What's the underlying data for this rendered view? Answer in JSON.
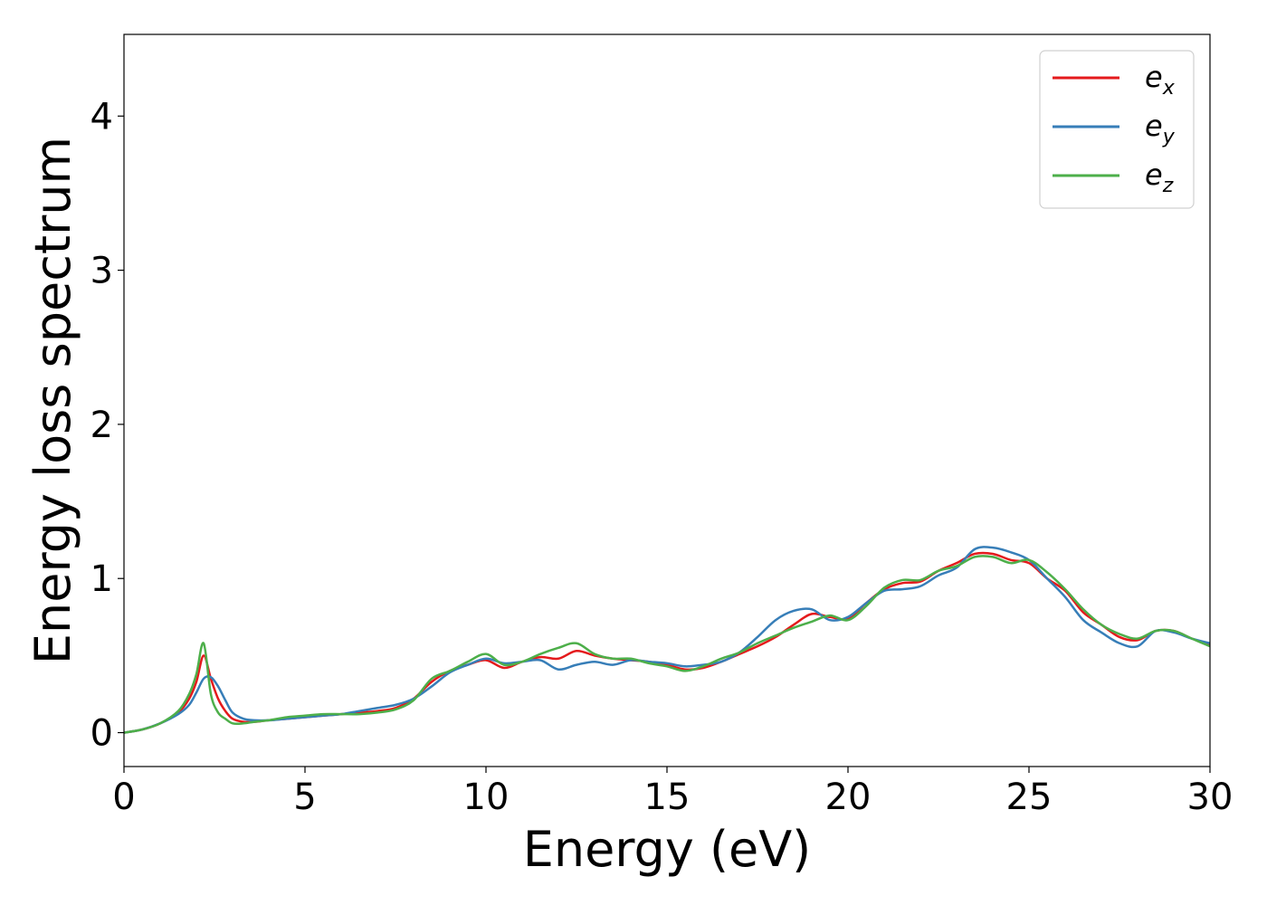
{
  "chart_data": {
    "type": "line",
    "xlabel": "Energy (eV)",
    "ylabel": "Energy loss spectrum",
    "xlim": [
      0,
      30
    ],
    "ylim": [
      -0.22,
      4.53
    ],
    "xticks": [
      0,
      5,
      10,
      15,
      20,
      25,
      30
    ],
    "yticks": [
      0,
      1,
      2,
      3,
      4
    ],
    "grid": false,
    "legend_position": "top-right",
    "x": [
      0,
      0.5,
      1,
      1.5,
      1.8,
      2.0,
      2.2,
      2.4,
      2.6,
      2.8,
      3.0,
      3.3,
      3.6,
      4,
      4.5,
      5,
      5.5,
      6,
      6.5,
      7,
      7.5,
      8,
      8.5,
      9,
      9.5,
      10,
      10.5,
      11,
      11.5,
      12,
      12.5,
      13,
      13.5,
      14,
      14.5,
      15,
      15.5,
      16,
      16.5,
      17,
      17.5,
      18,
      18.5,
      19,
      19.5,
      20,
      20.5,
      21,
      21.5,
      22,
      22.5,
      23,
      23.5,
      24,
      24.5,
      25,
      25.5,
      26,
      26.5,
      27,
      27.5,
      28,
      28.5,
      29,
      29.5,
      30
    ],
    "series": [
      {
        "name_base": "e",
        "name_sub": "x",
        "color": "#e41a1c",
        "values": [
          0,
          0.02,
          0.06,
          0.13,
          0.22,
          0.33,
          0.5,
          0.35,
          0.22,
          0.14,
          0.09,
          0.07,
          0.07,
          0.08,
          0.09,
          0.1,
          0.11,
          0.12,
          0.13,
          0.14,
          0.16,
          0.22,
          0.33,
          0.4,
          0.44,
          0.47,
          0.42,
          0.46,
          0.49,
          0.48,
          0.53,
          0.5,
          0.48,
          0.47,
          0.46,
          0.44,
          0.41,
          0.42,
          0.46,
          0.51,
          0.56,
          0.62,
          0.7,
          0.77,
          0.75,
          0.74,
          0.84,
          0.93,
          0.97,
          0.98,
          1.05,
          1.1,
          1.16,
          1.16,
          1.12,
          1.1,
          1.0,
          0.92,
          0.78,
          0.7,
          0.62,
          0.6,
          0.66,
          0.66,
          0.61,
          0.57
        ]
      },
      {
        "name_base": "e",
        "name_sub": "y",
        "color": "#377eb8",
        "values": [
          0,
          0.02,
          0.06,
          0.12,
          0.18,
          0.26,
          0.35,
          0.36,
          0.3,
          0.21,
          0.13,
          0.09,
          0.08,
          0.08,
          0.09,
          0.1,
          0.11,
          0.12,
          0.14,
          0.16,
          0.18,
          0.22,
          0.3,
          0.39,
          0.44,
          0.48,
          0.45,
          0.46,
          0.47,
          0.41,
          0.44,
          0.46,
          0.44,
          0.47,
          0.46,
          0.45,
          0.43,
          0.44,
          0.46,
          0.52,
          0.62,
          0.73,
          0.79,
          0.8,
          0.73,
          0.75,
          0.84,
          0.92,
          0.93,
          0.95,
          1.02,
          1.07,
          1.19,
          1.2,
          1.17,
          1.12,
          1.0,
          0.88,
          0.73,
          0.65,
          0.58,
          0.56,
          0.66,
          0.65,
          0.61,
          0.58
        ]
      },
      {
        "name_base": "e",
        "name_sub": "z",
        "color": "#4daf4a",
        "values": [
          0,
          0.02,
          0.06,
          0.14,
          0.25,
          0.38,
          0.58,
          0.25,
          0.13,
          0.09,
          0.06,
          0.06,
          0.07,
          0.08,
          0.1,
          0.11,
          0.12,
          0.12,
          0.12,
          0.13,
          0.15,
          0.21,
          0.35,
          0.4,
          0.46,
          0.51,
          0.44,
          0.46,
          0.51,
          0.55,
          0.58,
          0.51,
          0.48,
          0.48,
          0.45,
          0.43,
          0.4,
          0.43,
          0.48,
          0.52,
          0.58,
          0.63,
          0.68,
          0.72,
          0.76,
          0.73,
          0.82,
          0.94,
          0.99,
          0.99,
          1.05,
          1.08,
          1.14,
          1.14,
          1.1,
          1.12,
          1.04,
          0.93,
          0.8,
          0.7,
          0.64,
          0.61,
          0.66,
          0.66,
          0.61,
          0.56
        ]
      }
    ]
  }
}
